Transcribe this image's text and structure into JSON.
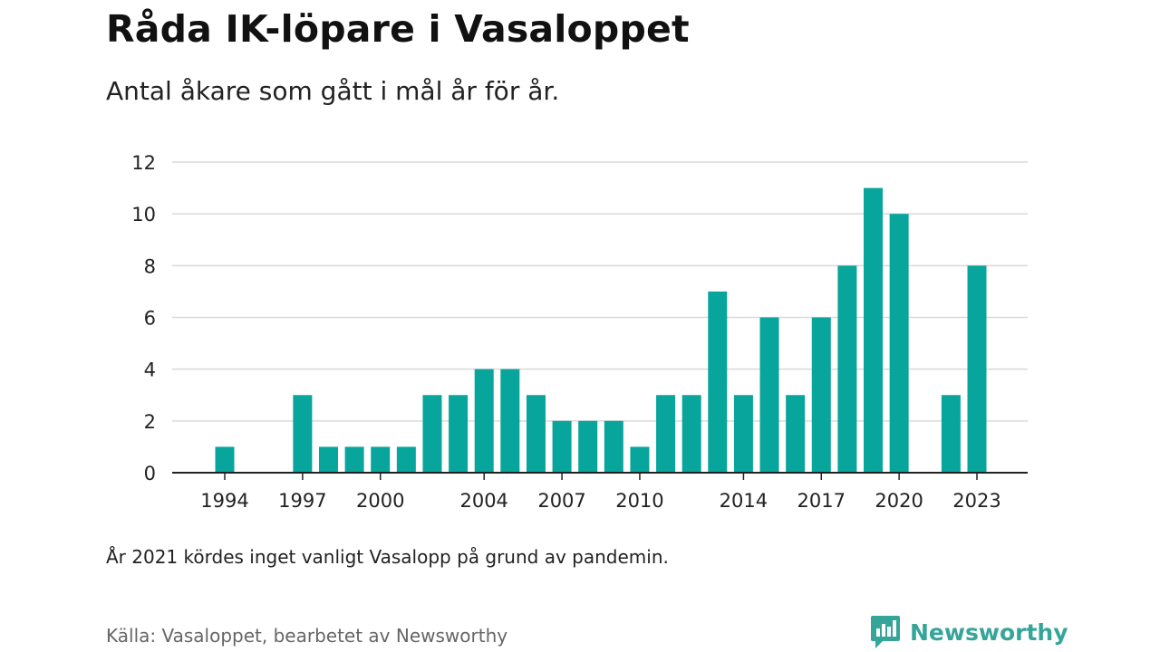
{
  "header": {
    "title": "Råda IK-löpare i Vasaloppet",
    "subtitle": "Antal åkare som gått i mål år för år."
  },
  "footer": {
    "note": "År 2021 kördes inget vanligt Vasalopp på grund av pandemin.",
    "source": "Källa: Vasaloppet, bearbetet av Newsworthy",
    "brand": "Newsworthy",
    "brand_icon": "newsworthy-logo-icon"
  },
  "colors": {
    "bar": "#07a59b",
    "grid": "#d9d9d9",
    "axis": "#222222",
    "brand": "#35a59a"
  },
  "chart_data": {
    "type": "bar",
    "title": "Råda IK-löpare i Vasaloppet",
    "subtitle": "Antal åkare som gått i mål år för år.",
    "xlabel": "",
    "ylabel": "",
    "x": [
      1994,
      1995,
      1996,
      1997,
      1998,
      1999,
      2000,
      2001,
      2002,
      2003,
      2004,
      2005,
      2006,
      2007,
      2008,
      2009,
      2010,
      2011,
      2012,
      2013,
      2014,
      2015,
      2016,
      2017,
      2018,
      2019,
      2020,
      2021,
      2022,
      2023
    ],
    "values": [
      1,
      0,
      0,
      3,
      1,
      1,
      1,
      1,
      3,
      3,
      4,
      4,
      3,
      2,
      2,
      2,
      1,
      3,
      3,
      7,
      3,
      6,
      3,
      6,
      8,
      11,
      10,
      0,
      3,
      8
    ],
    "x_tick_labels": [
      "1994",
      "1997",
      "2000",
      "2004",
      "2007",
      "2010",
      "2014",
      "2017",
      "2020",
      "2023"
    ],
    "y_ticks": [
      "0",
      "2",
      "4",
      "6",
      "8",
      "10",
      "12"
    ],
    "ylim": [
      0,
      12
    ],
    "grid": true,
    "legend": "none"
  }
}
